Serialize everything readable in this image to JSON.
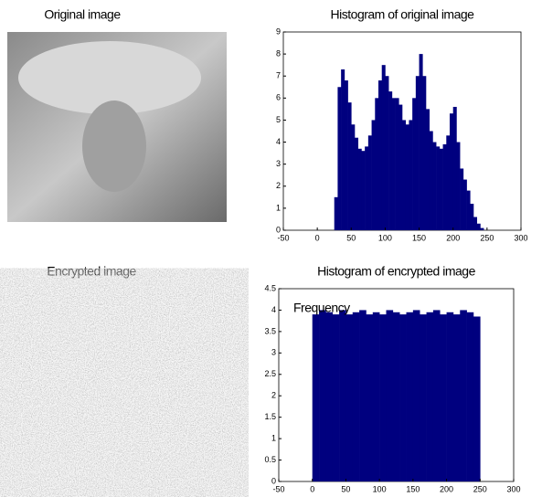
{
  "images": [
    {
      "title": "Original image"
    },
    {
      "title": "Encrypted image"
    }
  ],
  "chart_data": [
    {
      "type": "histogram",
      "title": "Histogram of original image",
      "color": "#00007f",
      "bins": [
        25,
        30,
        35,
        40,
        45,
        50,
        55,
        60,
        65,
        70,
        75,
        80,
        85,
        90,
        95,
        100,
        105,
        110,
        115,
        120,
        125,
        130,
        135,
        140,
        145,
        150,
        155,
        160,
        165,
        170,
        175,
        180,
        185,
        190,
        195,
        200,
        205,
        210,
        215,
        220,
        225,
        230,
        235,
        240,
        245
      ],
      "values": [
        1.5,
        6.5,
        7.3,
        6.8,
        5.8,
        4.8,
        4.2,
        3.7,
        3.6,
        3.8,
        4.3,
        5.0,
        6.0,
        6.8,
        7.5,
        7.0,
        6.3,
        6.0,
        6.0,
        5.7,
        5.0,
        4.8,
        5.0,
        6.0,
        7.0,
        8.0,
        7.0,
        5.5,
        4.5,
        4.0,
        3.8,
        3.7,
        3.9,
        4.3,
        5.3,
        5.6,
        4.0,
        2.8,
        2.3,
        1.8,
        1.2,
        0.6,
        0.3,
        0.1
      ],
      "xlim": [
        -50,
        300
      ],
      "xticks": [
        -50,
        0,
        50,
        100,
        150,
        200,
        250,
        300
      ],
      "ylim": [
        0,
        9
      ],
      "yticks": [
        0,
        1,
        2,
        3,
        4,
        5,
        6,
        7,
        8,
        9
      ]
    },
    {
      "type": "histogram",
      "title": "Histogram of encrypted image",
      "color": "#00007f",
      "annotation": "Frequency",
      "bins": [
        0,
        10,
        20,
        30,
        40,
        50,
        60,
        70,
        80,
        90,
        100,
        110,
        120,
        130,
        140,
        150,
        160,
        170,
        180,
        190,
        200,
        210,
        220,
        230,
        240,
        250
      ],
      "values": [
        3.9,
        4.0,
        3.95,
        3.9,
        4.0,
        3.9,
        3.95,
        4.0,
        3.9,
        3.95,
        3.9,
        4.0,
        3.95,
        3.9,
        3.95,
        4.0,
        3.9,
        3.95,
        4.0,
        3.9,
        3.95,
        3.9,
        4.0,
        3.95,
        3.85
      ],
      "xlim": [
        -50,
        300
      ],
      "xticks": [
        -50,
        0,
        50,
        100,
        150,
        200,
        250,
        300
      ],
      "ylim": [
        0,
        4.5
      ],
      "yticks": [
        0,
        0.5,
        1,
        1.5,
        2,
        2.5,
        3,
        3.5,
        4,
        4.5
      ]
    }
  ]
}
